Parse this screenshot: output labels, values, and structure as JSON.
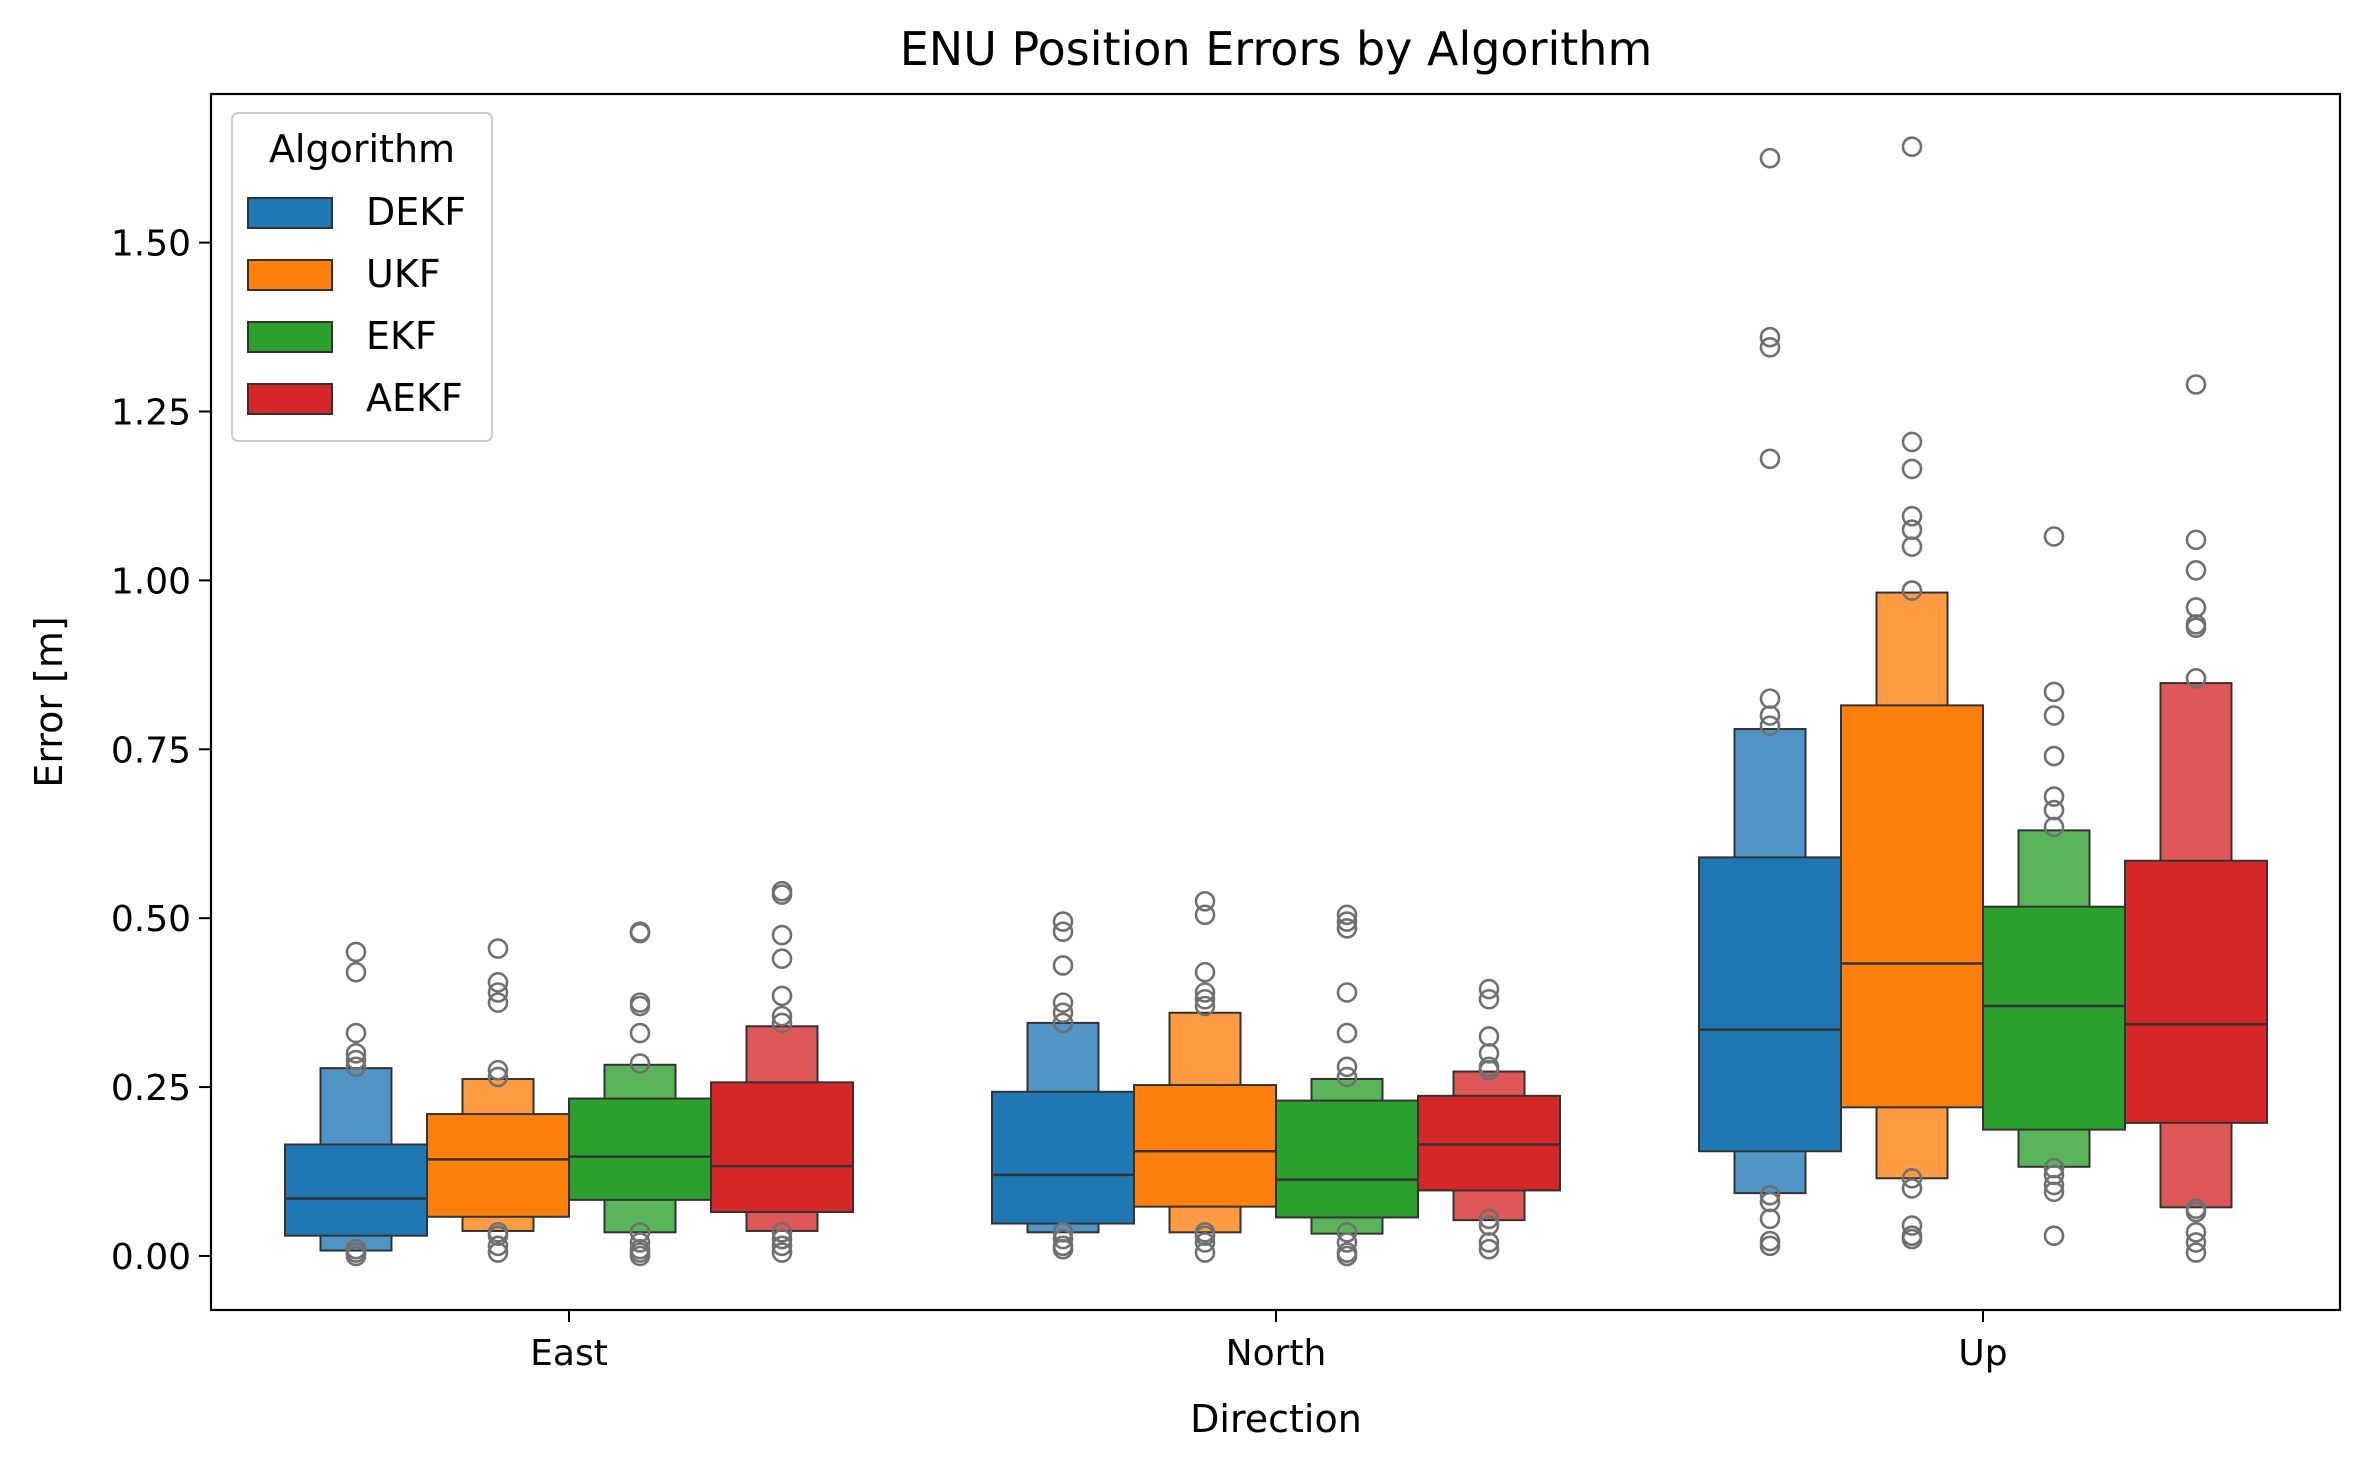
{
  "chart_data": {
    "type": "boxen",
    "title": "ENU Position Errors by Algorithm",
    "xlabel": "Direction",
    "ylabel": "Error [m]",
    "categories": [
      "East",
      "North",
      "Up"
    ],
    "ylim": [
      -0.08,
      1.72
    ],
    "yticks": [
      0.0,
      0.25,
      0.5,
      0.75,
      1.0,
      1.25,
      1.5
    ],
    "ytick_labels": [
      "0.00",
      "0.25",
      "0.50",
      "0.75",
      "1.00",
      "1.25",
      "1.50"
    ],
    "legend": {
      "title": "Algorithm",
      "placement": "top-left"
    },
    "series": [
      {
        "name": "DEKF",
        "color": "#1f77b4",
        "groups": [
          {
            "median": 0.085,
            "box": [
              0.03,
              0.165
            ],
            "outer": [
              0.008,
              0.278
            ],
            "outliers": [
              0.45,
              0.42,
              0.33,
              0.3,
              0.29,
              0.28,
              0.005,
              0.0,
              0.01
            ]
          },
          {
            "median": 0.12,
            "box": [
              0.048,
              0.243
            ],
            "outer": [
              0.035,
              0.345
            ],
            "outliers": [
              0.495,
              0.48,
              0.43,
              0.375,
              0.36,
              0.345,
              0.035,
              0.025,
              0.015,
              0.01
            ]
          },
          {
            "median": 0.335,
            "box": [
              0.155,
              0.59
            ],
            "outer": [
              0.093,
              0.78
            ],
            "outliers": [
              1.625,
              1.36,
              1.345,
              1.18,
              0.825,
              0.8,
              0.785,
              0.09,
              0.08,
              0.055,
              0.022,
              0.015
            ]
          }
        ]
      },
      {
        "name": "UKF",
        "color": "#ff7f0e",
        "groups": [
          {
            "median": 0.143,
            "box": [
              0.058,
              0.21
            ],
            "outer": [
              0.037,
              0.262
            ],
            "outliers": [
              0.455,
              0.405,
              0.39,
              0.375,
              0.275,
              0.265,
              0.035,
              0.03,
              0.015,
              0.005
            ]
          },
          {
            "median": 0.155,
            "box": [
              0.073,
              0.253
            ],
            "outer": [
              0.035,
              0.36
            ],
            "outliers": [
              0.525,
              0.505,
              0.42,
              0.39,
              0.38,
              0.37,
              0.035,
              0.03,
              0.02,
              0.005
            ]
          },
          {
            "median": 0.433,
            "box": [
              0.22,
              0.815
            ],
            "outer": [
              0.115,
              0.982
            ],
            "outliers": [
              1.642,
              1.205,
              1.165,
              1.095,
              1.075,
              1.05,
              0.985,
              0.115,
              0.1,
              0.045,
              0.03,
              0.025
            ]
          }
        ]
      },
      {
        "name": "EKF",
        "color": "#2ca02c",
        "groups": [
          {
            "median": 0.147,
            "box": [
              0.083,
              0.233
            ],
            "outer": [
              0.035,
              0.283
            ],
            "outliers": [
              0.48,
              0.478,
              0.375,
              0.37,
              0.33,
              0.285,
              0.035,
              0.02,
              0.01,
              0.005,
              0.0
            ]
          },
          {
            "median": 0.113,
            "box": [
              0.057,
              0.23
            ],
            "outer": [
              0.033,
              0.262
            ],
            "outliers": [
              0.505,
              0.495,
              0.485,
              0.39,
              0.33,
              0.28,
              0.265,
              0.035,
              0.02,
              0.005,
              0.0
            ]
          },
          {
            "median": 0.37,
            "box": [
              0.187,
              0.517
            ],
            "outer": [
              0.132,
              0.63
            ],
            "outliers": [
              1.065,
              0.835,
              0.8,
              0.74,
              0.68,
              0.66,
              0.635,
              0.13,
              0.12,
              0.105,
              0.095,
              0.03
            ]
          }
        ]
      },
      {
        "name": "AEKF",
        "color": "#d62728",
        "groups": [
          {
            "median": 0.133,
            "box": [
              0.065,
              0.257
            ],
            "outer": [
              0.037,
              0.34
            ],
            "outliers": [
              0.54,
              0.535,
              0.475,
              0.44,
              0.385,
              0.355,
              0.345,
              0.035,
              0.025,
              0.015,
              0.005
            ]
          },
          {
            "median": 0.165,
            "box": [
              0.097,
              0.237
            ],
            "outer": [
              0.053,
              0.273
            ],
            "outliers": [
              0.395,
              0.38,
              0.325,
              0.3,
              0.28,
              0.275,
              0.055,
              0.045,
              0.02,
              0.01
            ]
          },
          {
            "median": 0.343,
            "box": [
              0.197,
              0.585
            ],
            "outer": [
              0.072,
              0.848
            ],
            "outliers": [
              1.29,
              1.06,
              1.015,
              0.96,
              0.935,
              0.93,
              0.855,
              0.07,
              0.065,
              0.035,
              0.02,
              0.005
            ]
          }
        ]
      }
    ],
    "grid": false
  }
}
